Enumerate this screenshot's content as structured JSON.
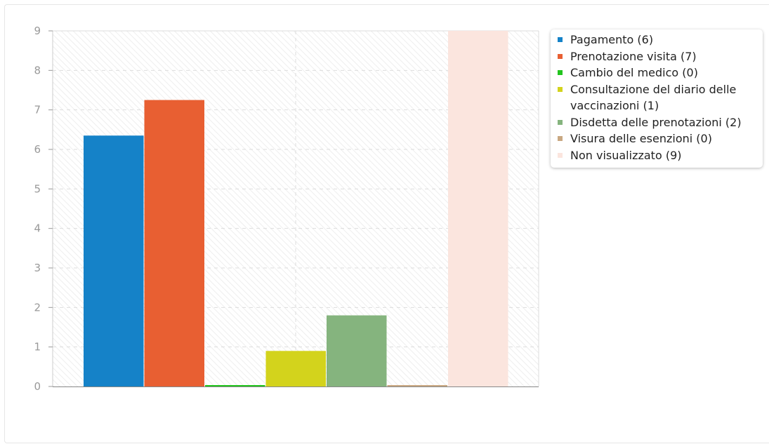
{
  "chart_data": {
    "type": "bar",
    "categories": [
      "Pagamento",
      "Prenotazione visita",
      "Cambio del medico",
      "Consultazione del diario delle vaccinazioni",
      "Disdetta delle prenotazioni",
      "Visura delle esenzioni",
      "Non visualizzato"
    ],
    "values": [
      6.35,
      7.25,
      0.0,
      0.9,
      1.8,
      0.0,
      9.0
    ],
    "colors": [
      "#1582c8",
      "#e85f32",
      "#22c41e",
      "#d3d31c",
      "#85b47e",
      "#c9a882",
      "#fbe5de"
    ],
    "title": "",
    "xlabel": "",
    "ylabel": "",
    "ylim": [
      0,
      9
    ],
    "yticks": [
      "0",
      "1",
      "2",
      "3",
      "4",
      "5",
      "6",
      "7",
      "8",
      "9"
    ],
    "grid": true,
    "legend": {
      "placement": "right",
      "entries": [
        "Pagamento (6)",
        "Prenotazione visita (7)",
        "Cambio del medico (0)",
        "Consultazione del diario delle vaccinazioni (1)",
        "Disdetta delle prenotazioni (2)",
        "Visura delle esenzioni (0)",
        "Non visualizzato (9)"
      ]
    }
  }
}
